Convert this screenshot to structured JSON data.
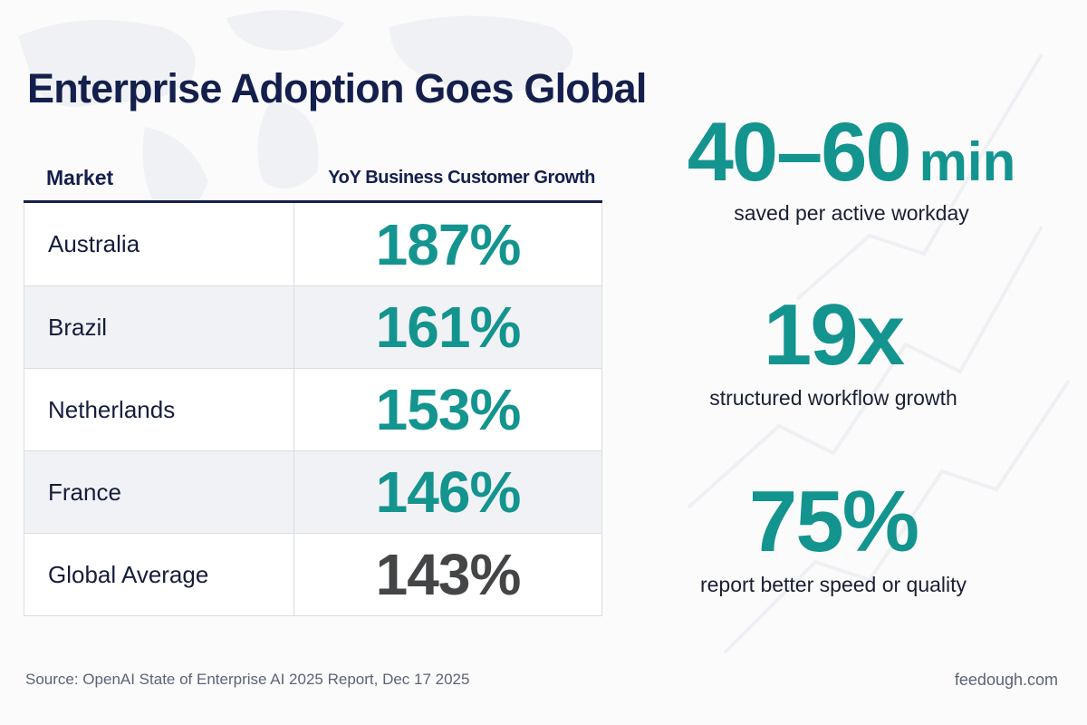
{
  "title": "Enterprise Adoption Goes Global",
  "table": {
    "headers": {
      "market": "Market",
      "growth": "YoY Business Customer Growth"
    },
    "rows": [
      {
        "market": "Australia",
        "growth": "187%"
      },
      {
        "market": "Brazil",
        "growth": "161%"
      },
      {
        "market": "Netherlands",
        "growth": "153%"
      },
      {
        "market": "France",
        "growth": "146%"
      },
      {
        "market": "Global Average",
        "growth": "143%"
      }
    ]
  },
  "stats": [
    {
      "value": "40–60",
      "unit": "min",
      "label": "saved per active workday"
    },
    {
      "value": "19x",
      "label": "structured workflow growth"
    },
    {
      "value": "75%",
      "label": "report better speed or quality"
    }
  ],
  "footer": {
    "source": "Source: OpenAI State of Enterprise AI 2025 Report, Dec 17 2025",
    "site": "feedough.com"
  },
  "colors": {
    "accent": "#14948f",
    "title": "#141f4c",
    "gray_value": "#444546"
  }
}
